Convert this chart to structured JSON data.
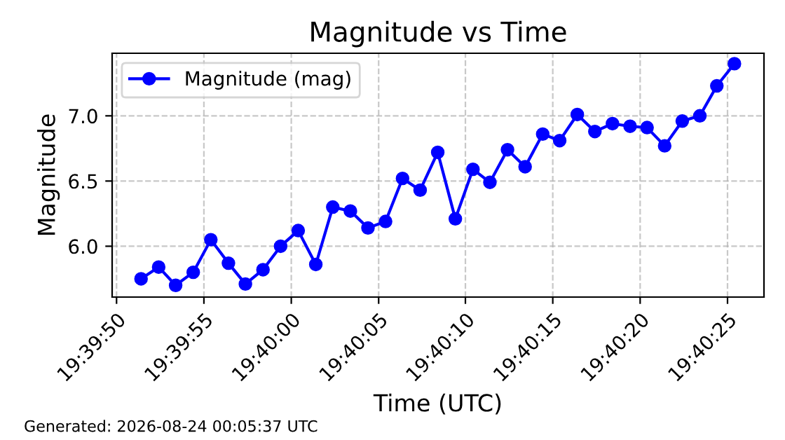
{
  "chart_data": {
    "type": "line",
    "title": "Magnitude vs Time",
    "xlabel": "Time (UTC)",
    "ylabel": "Magnitude",
    "annotations": [
      "Generated: 2026-08-24 00:05:37 UTC"
    ],
    "x": [
      19.66428,
      19.66456,
      19.66483,
      19.66511,
      19.66539,
      19.66567,
      19.66594,
      19.66622,
      19.6665,
      19.66678,
      19.66706,
      19.66733,
      19.66761,
      19.66789,
      19.66817,
      19.66844,
      19.66872,
      19.669,
      19.66928,
      19.66956,
      19.66983,
      19.67011,
      19.67039,
      19.67067,
      19.67094,
      19.67122,
      19.6715,
      19.67178,
      19.67206,
      19.67233,
      19.67261,
      19.67289,
      19.67317,
      19.67344,
      19.67372
    ],
    "series": [
      {
        "name": "Magnitude (mag)",
        "color": "#0000ff",
        "values": [
          5.75,
          5.84,
          5.7,
          5.8,
          6.05,
          5.87,
          5.71,
          5.82,
          6.0,
          6.12,
          5.86,
          6.3,
          6.27,
          6.14,
          6.19,
          6.52,
          6.43,
          6.72,
          6.21,
          6.59,
          6.49,
          6.74,
          6.61,
          6.86,
          6.81,
          7.01,
          6.88,
          6.94,
          6.92,
          6.91,
          6.77,
          6.96,
          7.0,
          7.23,
          7.4
        ]
      }
    ],
    "xlim": [
      19.66382,
      19.67419
    ],
    "ylim": [
      5.61,
      7.48
    ],
    "xticks": [
      {
        "value": 19.66389,
        "label": "19:39:50"
      },
      {
        "value": 19.66528,
        "label": "19:39:55"
      },
      {
        "value": 19.66667,
        "label": "19:40:00"
      },
      {
        "value": 19.66806,
        "label": "19:40:05"
      },
      {
        "value": 19.66944,
        "label": "19:40:10"
      },
      {
        "value": 19.67083,
        "label": "19:40:15"
      },
      {
        "value": 19.67222,
        "label": "19:40:20"
      },
      {
        "value": 19.67361,
        "label": "19:40:25"
      }
    ],
    "yticks": [
      {
        "value": 6.0,
        "label": "6.0"
      },
      {
        "value": 6.5,
        "label": "6.5"
      },
      {
        "value": 7.0,
        "label": "7.0"
      }
    ],
    "grid": true,
    "legend": "top left",
    "marker": "circle",
    "line_style": "solid"
  }
}
